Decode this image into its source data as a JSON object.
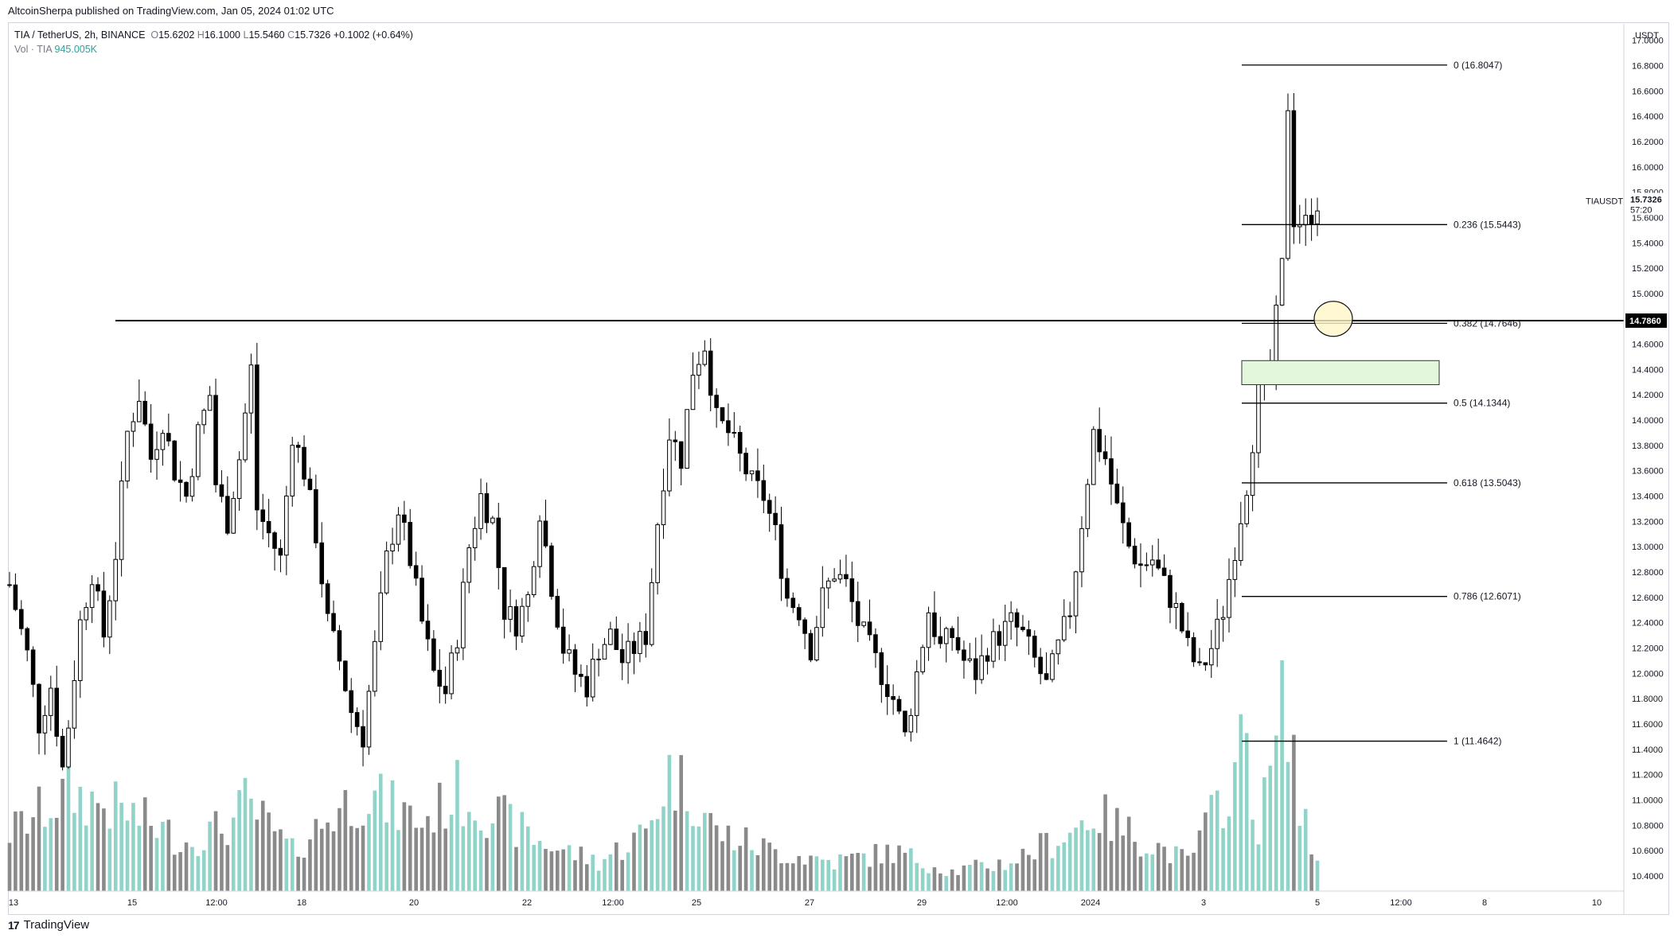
{
  "header": {
    "published": "AltcoinSherpa published on TradingView.com, Jan 05, 2024 01:02 UTC"
  },
  "legend": {
    "symbol": "TIA / TetherUS, 2h, BINANCE",
    "o_label": "O",
    "o": "15.6202",
    "h_label": "H",
    "h": "16.1000",
    "l_label": "L",
    "l": "15.5460",
    "c_label": "C",
    "c": "15.7326",
    "change": "+0.1002 (+0.64%)",
    "vol_label": "Vol · TIA",
    "vol_value": "945.005K"
  },
  "footer": {
    "logo_text": "17",
    "brand": "TradingView"
  },
  "colors": {
    "up": "#ffffff",
    "down": "#000000",
    "vol_up": "#8fd3c9",
    "vol_down": "#8a8a8a",
    "zone": "#e3f7dd",
    "zone_border": "#333333",
    "circle": "#fff6c8"
  },
  "chart_data": {
    "type": "candlestick",
    "symbol": "TIAUSDT",
    "currency": "USDT",
    "timeframe": "2h",
    "y_axis_labels": [
      "17.0000",
      "16.8000",
      "16.6000",
      "16.4000",
      "16.2000",
      "16.0000",
      "15.8000",
      "15.6000",
      "15.4000",
      "15.2000",
      "15.0000",
      "14.8000",
      "14.6000",
      "14.4000",
      "14.2000",
      "14.0000",
      "13.8000",
      "13.6000",
      "13.4000",
      "13.2000",
      "13.0000",
      "12.8000",
      "12.6000",
      "12.4000",
      "12.2000",
      "12.0000",
      "11.8000",
      "11.6000",
      "11.4000",
      "11.2000",
      "11.0000",
      "10.8000",
      "10.6000",
      "10.4000"
    ],
    "x_axis_labels": [
      "13",
      "15",
      "12:00",
      "18",
      "20",
      "22",
      "12:00",
      "25",
      "27",
      "29",
      "12:00",
      "2024",
      "3",
      "5",
      "12:00",
      "8",
      "10"
    ],
    "ylim": [
      10.28,
      17.13
    ],
    "last_price": {
      "label": "TIAUSDT",
      "value": "15.7326",
      "countdown": "57:20"
    },
    "horizontal_line": {
      "price": 14.786,
      "label": "14.7860"
    },
    "fib_levels": [
      {
        "label": "0 (16.8047)",
        "price": 16.8047
      },
      {
        "label": "0.236 (15.5443)",
        "price": 15.5443
      },
      {
        "label": "0.382 (14.7646)",
        "price": 14.7646
      },
      {
        "label": "0.5 (14.1344)",
        "price": 14.1344
      },
      {
        "label": "0.618 (13.5043)",
        "price": 13.5043
      },
      {
        "label": "0.786 (12.6071)",
        "price": 12.6071
      },
      {
        "label": "1 (11.4642)",
        "price": 11.4642
      }
    ],
    "support_zone": {
      "low": 14.28,
      "high": 14.47
    },
    "price_path": [
      [
        0,
        12.7
      ],
      [
        3,
        12.15
      ],
      [
        5,
        11.6
      ],
      [
        7,
        11.9
      ],
      [
        9,
        11.25
      ],
      [
        10,
        11.6
      ],
      [
        12,
        12.4
      ],
      [
        14,
        12.8
      ],
      [
        16,
        12.3
      ],
      [
        18,
        12.95
      ],
      [
        20,
        13.9
      ],
      [
        22,
        14.2
      ],
      [
        24,
        13.7
      ],
      [
        26,
        14.0
      ],
      [
        28,
        13.6
      ],
      [
        30,
        13.4
      ],
      [
        32,
        13.9
      ],
      [
        34,
        14.2
      ],
      [
        35,
        13.5
      ],
      [
        37,
        13.2
      ],
      [
        39,
        13.7
      ],
      [
        41,
        14.4
      ],
      [
        42,
        13.3
      ],
      [
        44,
        13.1
      ],
      [
        46,
        12.9
      ],
      [
        48,
        13.9
      ],
      [
        50,
        13.6
      ],
      [
        52,
        13.1
      ],
      [
        54,
        12.4
      ],
      [
        56,
        12.1
      ],
      [
        58,
        11.7
      ],
      [
        60,
        11.5
      ],
      [
        62,
        12.2
      ],
      [
        64,
        12.9
      ],
      [
        66,
        13.3
      ],
      [
        68,
        12.9
      ],
      [
        70,
        12.4
      ],
      [
        72,
        12.0
      ],
      [
        74,
        11.85
      ],
      [
        76,
        12.3
      ],
      [
        78,
        13.0
      ],
      [
        80,
        13.4
      ],
      [
        82,
        13.2
      ],
      [
        84,
        12.5
      ],
      [
        86,
        12.4
      ],
      [
        88,
        12.6
      ],
      [
        90,
        13.3
      ],
      [
        92,
        12.7
      ],
      [
        94,
        12.2
      ],
      [
        96,
        12.0
      ],
      [
        98,
        11.9
      ],
      [
        100,
        12.2
      ],
      [
        102,
        12.3
      ],
      [
        104,
        12.1
      ],
      [
        106,
        12.2
      ],
      [
        108,
        12.3
      ],
      [
        110,
        13.2
      ],
      [
        112,
        13.9
      ],
      [
        114,
        13.7
      ],
      [
        116,
        14.4
      ],
      [
        118,
        14.6
      ],
      [
        120,
        14.0
      ],
      [
        122,
        13.9
      ],
      [
        124,
        13.7
      ],
      [
        126,
        13.5
      ],
      [
        128,
        13.4
      ],
      [
        130,
        13.1
      ],
      [
        132,
        12.6
      ],
      [
        134,
        12.5
      ],
      [
        136,
        12.2
      ],
      [
        138,
        12.6
      ],
      [
        140,
        12.8
      ],
      [
        142,
        12.7
      ],
      [
        144,
        12.4
      ],
      [
        146,
        12.2
      ],
      [
        148,
        12.0
      ],
      [
        150,
        11.8
      ],
      [
        152,
        11.5
      ],
      [
        154,
        12.0
      ],
      [
        156,
        12.5
      ],
      [
        158,
        12.2
      ],
      [
        160,
        12.3
      ],
      [
        162,
        12.1
      ],
      [
        164,
        12.0
      ],
      [
        166,
        12.2
      ],
      [
        168,
        12.3
      ],
      [
        170,
        12.4
      ],
      [
        172,
        12.3
      ],
      [
        174,
        12.1
      ],
      [
        176,
        11.9
      ],
      [
        178,
        12.2
      ],
      [
        180,
        12.5
      ],
      [
        182,
        13.2
      ],
      [
        184,
        13.9
      ],
      [
        186,
        13.7
      ],
      [
        188,
        13.3
      ],
      [
        190,
        13.0
      ],
      [
        192,
        12.85
      ],
      [
        194,
        12.9
      ],
      [
        196,
        12.7
      ],
      [
        198,
        12.5
      ],
      [
        200,
        12.2
      ],
      [
        202,
        12.0
      ],
      [
        204,
        12.2
      ],
      [
        206,
        12.5
      ],
      [
        208,
        13.0
      ],
      [
        210,
        13.5
      ],
      [
        212,
        14.2
      ],
      [
        214,
        14.4
      ],
      [
        216,
        15.2
      ],
      [
        217,
        16.5
      ],
      [
        218,
        15.6
      ],
      [
        220,
        15.55
      ],
      [
        222,
        15.73
      ]
    ],
    "volume_path": [
      [
        0,
        0.3
      ],
      [
        10,
        0.5
      ],
      [
        20,
        0.4
      ],
      [
        30,
        0.25
      ],
      [
        38,
        0.35
      ],
      [
        40,
        0.45
      ],
      [
        48,
        0.2
      ],
      [
        55,
        0.4
      ],
      [
        60,
        0.5
      ],
      [
        70,
        0.35
      ],
      [
        76,
        0.5
      ],
      [
        82,
        0.4
      ],
      [
        90,
        0.25
      ],
      [
        100,
        0.15
      ],
      [
        108,
        0.3
      ],
      [
        112,
        0.6
      ],
      [
        116,
        0.5
      ],
      [
        120,
        0.3
      ],
      [
        130,
        0.2
      ],
      [
        140,
        0.15
      ],
      [
        150,
        0.2
      ],
      [
        160,
        0.1
      ],
      [
        170,
        0.15
      ],
      [
        180,
        0.3
      ],
      [
        184,
        0.4
      ],
      [
        190,
        0.3
      ],
      [
        200,
        0.15
      ],
      [
        208,
        0.6
      ],
      [
        210,
        0.8
      ],
      [
        212,
        0.3
      ],
      [
        214,
        0.6
      ],
      [
        216,
        0.9
      ],
      [
        217,
        1.0
      ],
      [
        219,
        0.4
      ],
      [
        222,
        0.15
      ]
    ],
    "grid": false
  }
}
